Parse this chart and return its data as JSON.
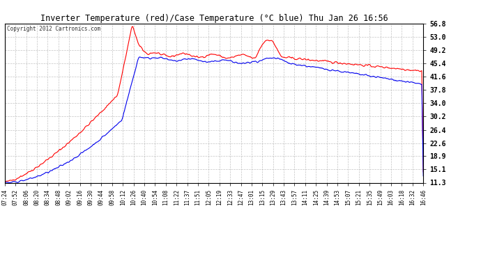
{
  "title": "Inverter Temperature (red)/Case Temperature (°C blue) Thu Jan 26 16:56",
  "copyright": "Copyright 2012 Cartronics.com",
  "bg_color": "#ffffff",
  "plot_bg_color": "#ffffff",
  "grid_color": "#aaaaaa",
  "line_red_color": "#ff0000",
  "line_blue_color": "#0000ee",
  "ymin": 11.3,
  "ymax": 56.8,
  "yticks": [
    11.3,
    15.1,
    18.9,
    22.6,
    26.4,
    30.2,
    34.0,
    37.8,
    41.6,
    45.4,
    49.2,
    53.0,
    56.8
  ],
  "xtick_labels": [
    "07:24",
    "07:52",
    "08:06",
    "08:20",
    "08:34",
    "08:48",
    "09:02",
    "09:16",
    "09:30",
    "09:44",
    "09:58",
    "10:12",
    "10:26",
    "10:40",
    "10:54",
    "11:08",
    "11:22",
    "11:37",
    "11:51",
    "12:05",
    "12:19",
    "12:33",
    "12:47",
    "13:01",
    "13:15",
    "13:29",
    "13:43",
    "13:57",
    "14:11",
    "14:25",
    "14:39",
    "14:53",
    "15:07",
    "15:21",
    "15:35",
    "15:49",
    "16:03",
    "16:18",
    "16:32",
    "16:46"
  ],
  "figwidth": 6.9,
  "figheight": 3.75,
  "dpi": 100
}
